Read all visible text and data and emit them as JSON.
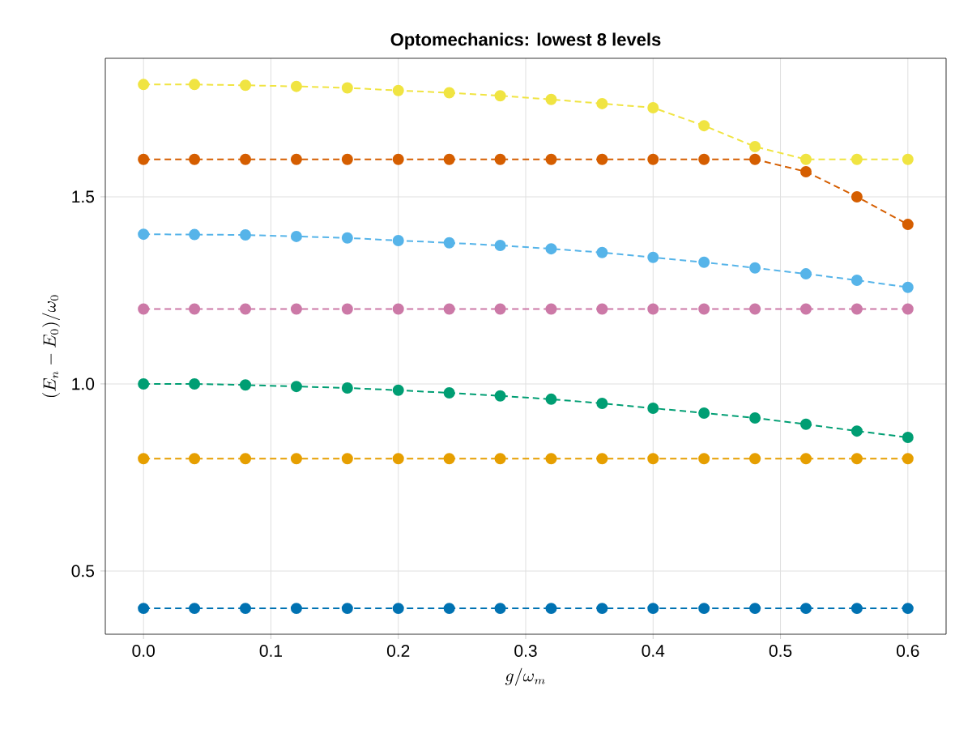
{
  "chart_data": {
    "type": "line",
    "title": "Optomechanics: lowest 8 levels",
    "xlabel": "g/\\omega_m",
    "ylabel": "(E_n - E_0)/\\omega_0",
    "x": [
      0,
      0.04,
      0.08,
      0.12,
      0.16,
      0.2,
      0.24,
      0.28,
      0.32,
      0.36,
      0.4,
      0.44,
      0.48,
      0.52,
      0.56,
      0.6
    ],
    "series": [
      {
        "color": "#0072b2",
        "values": [
          0.4,
          0.4,
          0.4,
          0.4,
          0.4,
          0.4,
          0.4,
          0.4,
          0.4,
          0.4,
          0.4,
          0.4,
          0.4,
          0.4,
          0.4,
          0.4
        ]
      },
      {
        "color": "#e69f00",
        "values": [
          0.8,
          0.8,
          0.8,
          0.8,
          0.8,
          0.8,
          0.8,
          0.8,
          0.8,
          0.8,
          0.8,
          0.8,
          0.8,
          0.8,
          0.8,
          0.8
        ]
      },
      {
        "color": "#009e73",
        "values": [
          1.0,
          1.0,
          0.997,
          0.993,
          0.989,
          0.983,
          0.976,
          0.968,
          0.959,
          0.948,
          0.935,
          0.922,
          0.909,
          0.892,
          0.874,
          0.857
        ]
      },
      {
        "color": "#cc79a7",
        "values": [
          1.2,
          1.2,
          1.2,
          1.2,
          1.2,
          1.2,
          1.2,
          1.2,
          1.2,
          1.2,
          1.2,
          1.2,
          1.2,
          1.2,
          1.2,
          1.2
        ]
      },
      {
        "color": "#56b4e9",
        "values": [
          1.4,
          1.399,
          1.398,
          1.394,
          1.39,
          1.383,
          1.377,
          1.37,
          1.361,
          1.351,
          1.338,
          1.325,
          1.31,
          1.294,
          1.277,
          1.258
        ]
      },
      {
        "color": "#d55e00",
        "values": [
          1.6,
          1.6,
          1.6,
          1.6,
          1.6,
          1.6,
          1.6,
          1.6,
          1.6,
          1.6,
          1.6,
          1.6,
          1.6,
          1.567,
          1.5,
          1.426
        ]
      },
      {
        "color": "#f0e442",
        "values": [
          1.8,
          1.8,
          1.798,
          1.795,
          1.791,
          1.784,
          1.778,
          1.77,
          1.76,
          1.749,
          1.738,
          1.69,
          1.634,
          1.6,
          1.6,
          1.6
        ]
      }
    ],
    "xlim": [
      -0.03,
      0.63
    ],
    "ylim": [
      0.331,
      1.87
    ],
    "xticks": [
      {
        "value": 0,
        "label": "0.0"
      },
      0.1,
      0.2,
      0.3,
      0.4,
      0.5,
      0.6
    ],
    "yticks": [
      0.5,
      {
        "value": 1,
        "label": "1.0"
      },
      1.5
    ],
    "grid": true,
    "marker": "circle",
    "line_style": "dashed"
  }
}
